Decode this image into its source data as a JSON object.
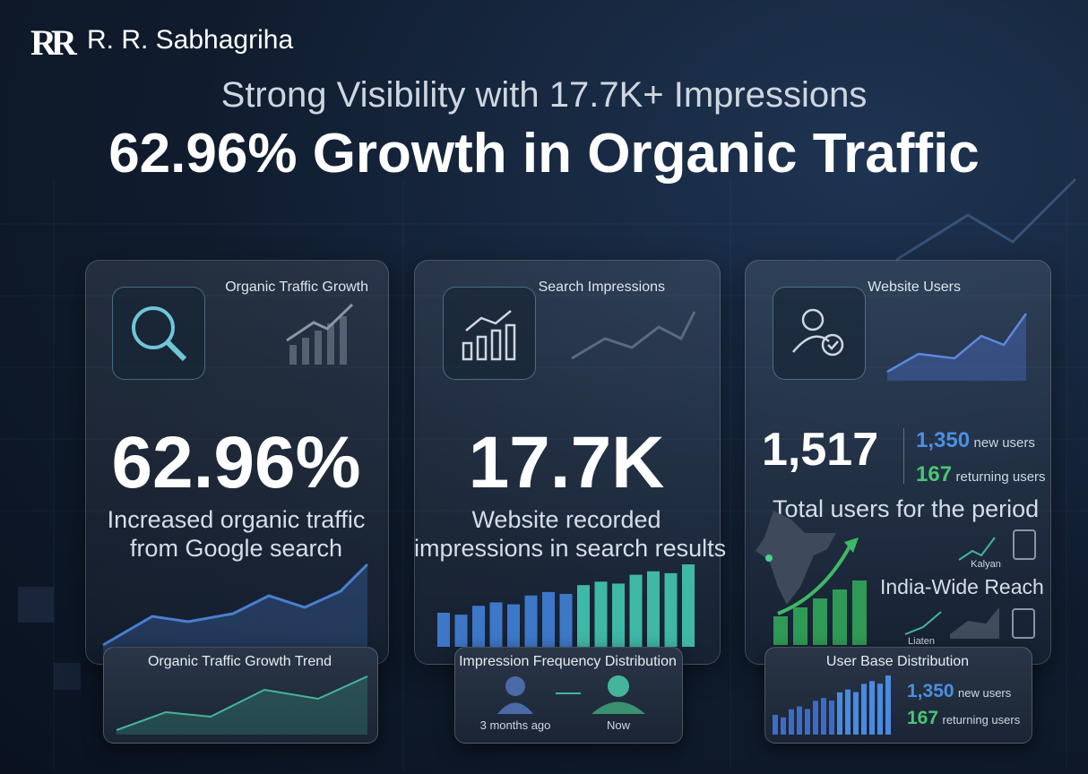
{
  "header": {
    "logo": "RR",
    "brand": "R. R. Sabhagriha",
    "subtitle": "Strong Visibility with 17.7K+ Impressions",
    "title": "62.96% Growth in Organic Traffic"
  },
  "cards": [
    {
      "label": "Organic Traffic Growth",
      "value": "62.96%",
      "description": [
        "Increased organic traffic",
        "from Google search"
      ],
      "panel": {
        "title": "Organic Traffic Growth Trend"
      }
    },
    {
      "label": "Search Impressions",
      "value": "17.7K",
      "description": [
        "Website recorded",
        "impressions in search results"
      ],
      "panel": {
        "title": "Impression Frequency Distribution",
        "before": "3 months ago",
        "after": "Now"
      }
    },
    {
      "label": "Website Users",
      "value": "1,517",
      "new_users": "1,350",
      "new_users_label": "new users",
      "returning_users": "167",
      "returning_users_label": "returning users",
      "description": [
        "Total users for the period"
      ],
      "map_labels": [
        "Kalyan",
        "Liaten"
      ],
      "reach": "India-Wide Reach",
      "panel": {
        "title": "User Base Distribution",
        "new_users": "1,350",
        "new_users_label": "new users",
        "returning_users": "167",
        "returning_users_label": "returning users"
      }
    }
  ]
}
